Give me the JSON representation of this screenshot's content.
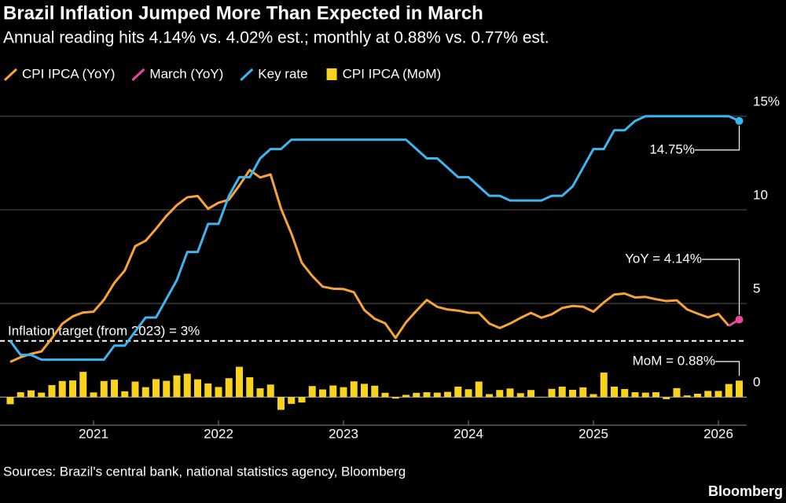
{
  "chart_data": {
    "type": "line",
    "title": "Brazil Inflation Jumped More Than Expected in March",
    "subtitle": "Annual reading hits 4.14% vs. 4.02% est.; monthly at 0.88% vs. 0.77% est.",
    "categories": [
      null,
      null,
      null,
      null,
      null,
      null,
      null,
      null,
      "2021",
      null,
      null,
      null,
      null,
      null,
      null,
      null,
      null,
      null,
      null,
      null,
      "2022",
      null,
      null,
      null,
      null,
      null,
      null,
      null,
      null,
      null,
      null,
      null,
      "2023",
      null,
      null,
      null,
      null,
      null,
      null,
      null,
      null,
      null,
      null,
      null,
      "2024",
      null,
      null,
      null,
      null,
      null,
      null,
      null,
      null,
      null,
      null,
      null,
      "2025",
      null,
      null,
      null,
      null,
      null,
      null,
      null,
      null,
      null,
      null,
      null,
      "2026",
      null,
      null
    ],
    "series": [
      {
        "name": "CPI IPCA (YoY)",
        "type": "line",
        "color": "#f7a33a",
        "values": [
          1.88,
          2.13,
          2.31,
          2.44,
          3.14,
          3.92,
          4.31,
          4.52,
          4.56,
          5.2,
          6.1,
          6.76,
          8.06,
          8.35,
          8.99,
          9.68,
          10.25,
          10.67,
          10.74,
          10.06,
          10.38,
          10.54,
          11.3,
          12.13,
          11.73,
          11.89,
          10.07,
          8.73,
          7.17,
          6.47,
          5.9,
          5.79,
          5.77,
          5.6,
          4.65,
          4.18,
          3.94,
          3.16,
          3.99,
          4.61,
          5.19,
          4.82,
          4.68,
          4.62,
          4.51,
          4.5,
          3.93,
          3.69,
          3.93,
          4.23,
          4.5,
          4.24,
          4.42,
          4.76,
          4.87,
          4.83,
          4.56,
          5.06,
          5.48,
          5.53,
          5.32,
          5.35,
          5.23,
          5.13,
          5.17,
          4.68,
          4.46,
          4.26,
          4.44,
          3.81,
          null
        ]
      },
      {
        "name": "March (YoY)",
        "type": "line",
        "color": "#e8489b",
        "values": [
          null,
          null,
          null,
          null,
          null,
          null,
          null,
          null,
          null,
          null,
          null,
          null,
          null,
          null,
          null,
          null,
          null,
          null,
          null,
          null,
          null,
          null,
          null,
          null,
          null,
          null,
          null,
          null,
          null,
          null,
          null,
          null,
          null,
          null,
          null,
          null,
          null,
          null,
          null,
          null,
          null,
          null,
          null,
          null,
          null,
          null,
          null,
          null,
          null,
          null,
          null,
          null,
          null,
          null,
          null,
          null,
          null,
          null,
          null,
          null,
          null,
          null,
          null,
          null,
          null,
          null,
          null,
          null,
          null,
          3.81,
          4.14
        ],
        "value_labels": [
          null,
          null,
          null,
          null,
          null,
          null,
          null,
          null,
          null,
          null,
          null,
          null,
          null,
          null,
          null,
          null,
          null,
          null,
          null,
          null,
          null,
          null,
          null,
          null,
          null,
          null,
          null,
          null,
          null,
          null,
          null,
          null,
          null,
          null,
          null,
          null,
          null,
          null,
          null,
          null,
          null,
          null,
          null,
          null,
          null,
          null,
          null,
          null,
          null,
          null,
          null,
          null,
          null,
          null,
          null,
          null,
          null,
          null,
          null,
          null,
          null,
          null,
          null,
          null,
          null,
          null,
          null,
          null,
          null,
          null,
          "YoY = 4.14%"
        ]
      },
      {
        "name": "Key rate",
        "type": "line",
        "color": "#3cb5f0",
        "values": [
          3.0,
          2.25,
          2.25,
          2.0,
          2.0,
          2.0,
          2.0,
          2.0,
          2.0,
          2.0,
          2.75,
          2.75,
          3.5,
          4.25,
          4.25,
          5.25,
          6.25,
          7.75,
          7.75,
          9.25,
          9.25,
          10.75,
          11.75,
          11.75,
          12.75,
          13.25,
          13.25,
          13.75,
          13.75,
          13.75,
          13.75,
          13.75,
          13.75,
          13.75,
          13.75,
          13.75,
          13.75,
          13.75,
          13.75,
          13.25,
          12.75,
          12.75,
          12.25,
          11.75,
          11.75,
          11.25,
          10.75,
          10.75,
          10.5,
          10.5,
          10.5,
          10.5,
          10.75,
          10.75,
          11.25,
          12.25,
          13.25,
          13.25,
          14.25,
          14.25,
          14.75,
          15,
          15,
          15,
          15,
          15,
          15,
          15,
          15,
          15,
          14.75
        ],
        "value_labels": [
          null,
          null,
          null,
          null,
          null,
          null,
          null,
          null,
          null,
          null,
          null,
          null,
          null,
          null,
          null,
          null,
          null,
          null,
          null,
          null,
          null,
          null,
          null,
          null,
          null,
          null,
          null,
          null,
          null,
          null,
          null,
          null,
          null,
          null,
          null,
          null,
          null,
          null,
          null,
          null,
          null,
          null,
          null,
          null,
          null,
          null,
          null,
          null,
          null,
          null,
          null,
          null,
          null,
          null,
          null,
          null,
          null,
          null,
          null,
          null,
          null,
          null,
          null,
          null,
          null,
          null,
          null,
          null,
          null,
          null,
          "14.75%"
        ]
      },
      {
        "name": "CPI IPCA (MoM)",
        "type": "bar",
        "color": "#f8d21c",
        "values": [
          -0.38,
          0.26,
          0.36,
          0.24,
          0.64,
          0.86,
          0.89,
          1.35,
          0.25,
          0.86,
          0.93,
          0.31,
          0.83,
          0.53,
          0.96,
          0.87,
          1.16,
          1.25,
          0.95,
          0.73,
          0.54,
          1.01,
          1.62,
          1.06,
          0.47,
          0.67,
          -0.68,
          -0.36,
          -0.29,
          0.59,
          0.41,
          0.62,
          0.53,
          0.84,
          0.71,
          0.61,
          0.23,
          -0.08,
          0.12,
          0.23,
          0.26,
          0.24,
          0.28,
          0.56,
          0.42,
          0.83,
          0.16,
          0.38,
          0.46,
          0.21,
          0.38,
          -0.02,
          0.44,
          0.56,
          0.39,
          0.52,
          0.16,
          1.31,
          0.56,
          0.43,
          0.26,
          0.24,
          0.26,
          -0.11,
          0.48,
          0.09,
          0.18,
          0.33,
          0.33,
          0.7,
          0.88
        ],
        "value_labels": [
          null,
          null,
          null,
          null,
          null,
          null,
          null,
          null,
          null,
          null,
          null,
          null,
          null,
          null,
          null,
          null,
          null,
          null,
          null,
          null,
          null,
          null,
          null,
          null,
          null,
          null,
          null,
          null,
          null,
          null,
          null,
          null,
          null,
          null,
          null,
          null,
          null,
          null,
          null,
          null,
          null,
          null,
          null,
          null,
          null,
          null,
          null,
          null,
          null,
          null,
          null,
          null,
          null,
          null,
          null,
          null,
          null,
          null,
          null,
          null,
          null,
          null,
          null,
          null,
          null,
          null,
          null,
          null,
          null,
          null,
          "MoM = 0.88%"
        ]
      }
    ],
    "target_line": {
      "value": 3,
      "label": "Inflation target (from 2023) = 3%"
    },
    "ylim": [
      -1.5,
      15.5
    ],
    "yticks": [
      0,
      5,
      10,
      {
        "value": 15,
        "label": "15%"
      }
    ],
    "grid": true,
    "source": "Sources: Brazil's central bank, national statistics agency, Bloomberg",
    "credit": "Bloomberg"
  }
}
